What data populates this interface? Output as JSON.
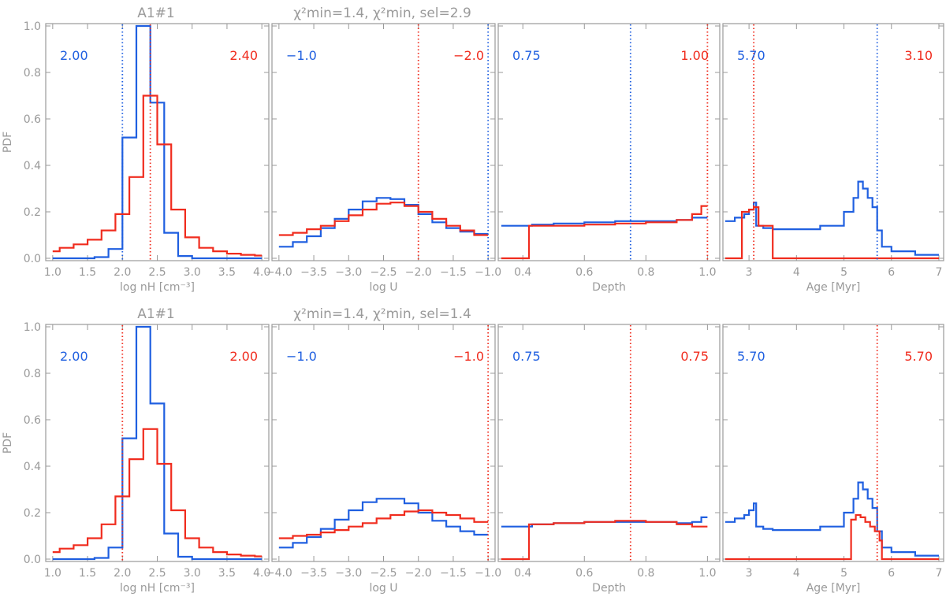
{
  "colors": {
    "blue": "#1f5fe0",
    "red": "#f02c1e",
    "axis": "#9a9a9a"
  },
  "rows": [
    {
      "titles": [
        {
          "text": "A1#1"
        },
        {
          "text": "χ²min=1.4, χ²min, sel=2.9"
        }
      ]
    },
    {
      "titles": [
        {
          "text": "A1#1"
        },
        {
          "text": "χ²min=1.4, χ²min, sel=1.4"
        }
      ]
    }
  ],
  "y_axis": {
    "label": "PDF",
    "ylim": [
      0,
      1.0
    ],
    "ticks": [
      "0.0",
      "0.2",
      "0.4",
      "0.6",
      "0.8",
      "1.0"
    ]
  },
  "chart_data": [
    {
      "type": "line",
      "row": 0,
      "col": 0,
      "xlabel": "log nH [cm⁻³]",
      "xlim": [
        0.9,
        4.1
      ],
      "xticks": [
        "1.0",
        "1.5",
        "2.0",
        "2.5",
        "3.0",
        "3.5",
        "4.0"
      ],
      "ylim": [
        0,
        1.0
      ],
      "annotations": {
        "blue": "2.00",
        "red": "2.40"
      },
      "vlines": [
        {
          "x": 2.0,
          "color": "blue"
        },
        {
          "x": 2.4,
          "color": "red"
        }
      ],
      "series": [
        {
          "color": "blue",
          "step_edges": [
            1.0,
            1.2,
            1.4,
            1.6,
            1.8,
            2.0,
            2.2,
            2.4,
            2.6,
            2.8,
            3.0,
            3.2,
            3.4,
            3.6,
            3.8,
            4.0
          ],
          "values": [
            0.0,
            0.0,
            0.0,
            0.005,
            0.04,
            0.52,
            1.0,
            0.67,
            0.11,
            0.01,
            0.0,
            0.0,
            0.0,
            0.0,
            0.0
          ]
        },
        {
          "color": "red",
          "step_edges": [
            1.0,
            1.1,
            1.3,
            1.5,
            1.7,
            1.9,
            2.1,
            2.3,
            2.5,
            2.7,
            2.9,
            3.1,
            3.3,
            3.5,
            3.7,
            3.9,
            4.0
          ],
          "values": [
            0.03,
            0.045,
            0.06,
            0.08,
            0.12,
            0.19,
            0.35,
            0.7,
            0.49,
            0.21,
            0.09,
            0.045,
            0.03,
            0.02,
            0.015,
            0.012
          ]
        }
      ]
    },
    {
      "type": "line",
      "row": 0,
      "col": 1,
      "xlabel": "log U",
      "xlim": [
        -4.1,
        -0.9
      ],
      "xticks": [
        "−4.0",
        "−3.5",
        "−3.0",
        "−2.5",
        "−2.0",
        "−1.5",
        "−1.0"
      ],
      "ylim": [
        0,
        1.0
      ],
      "annotations": {
        "blue": "−1.0",
        "red": "−2.0"
      },
      "vlines": [
        {
          "x": -1.0,
          "color": "blue"
        },
        {
          "x": -2.0,
          "color": "red"
        }
      ],
      "series": [
        {
          "color": "blue",
          "step_edges": [
            -4.0,
            -3.8,
            -3.6,
            -3.4,
            -3.2,
            -3.0,
            -2.8,
            -2.6,
            -2.4,
            -2.2,
            -2.0,
            -1.8,
            -1.6,
            -1.4,
            -1.2,
            -1.0
          ],
          "values": [
            0.05,
            0.07,
            0.095,
            0.13,
            0.17,
            0.21,
            0.245,
            0.26,
            0.255,
            0.23,
            0.19,
            0.155,
            0.13,
            0.115,
            0.105
          ]
        },
        {
          "color": "red",
          "step_edges": [
            -4.0,
            -3.8,
            -3.6,
            -3.4,
            -3.2,
            -3.0,
            -2.8,
            -2.6,
            -2.4,
            -2.2,
            -2.0,
            -1.8,
            -1.6,
            -1.4,
            -1.2,
            -1.0
          ],
          "values": [
            0.1,
            0.11,
            0.125,
            0.14,
            0.16,
            0.185,
            0.21,
            0.235,
            0.24,
            0.225,
            0.2,
            0.17,
            0.14,
            0.12,
            0.1
          ]
        }
      ]
    },
    {
      "type": "line",
      "row": 0,
      "col": 2,
      "xlabel": "Depth",
      "xlim": [
        0.32,
        1.04
      ],
      "xticks": [
        "0.4",
        "0.6",
        "0.8",
        "1.0"
      ],
      "ylim": [
        0,
        1.0
      ],
      "annotations": {
        "blue": "0.75",
        "red": "1.00"
      },
      "vlines": [
        {
          "x": 0.75,
          "color": "blue"
        },
        {
          "x": 1.0,
          "color": "red"
        }
      ],
      "series": [
        {
          "color": "blue",
          "step_edges": [
            0.33,
            0.43,
            0.5,
            0.6,
            0.7,
            0.8,
            0.9,
            0.95,
            1.0
          ],
          "values": [
            0.14,
            0.145,
            0.15,
            0.155,
            0.16,
            0.16,
            0.165,
            0.175
          ]
        },
        {
          "color": "red",
          "step_edges": [
            0.33,
            0.42,
            0.5,
            0.6,
            0.7,
            0.8,
            0.9,
            0.95,
            0.98,
            1.0
          ],
          "values": [
            0.0,
            0.14,
            0.14,
            0.145,
            0.15,
            0.155,
            0.165,
            0.19,
            0.225
          ]
        }
      ]
    },
    {
      "type": "line",
      "row": 0,
      "col": 3,
      "xlabel": "Age [Myr]",
      "xlim": [
        2.45,
        7.1
      ],
      "xticks": [
        "3",
        "4",
        "5",
        "6",
        "7"
      ],
      "ylim": [
        0,
        1.0
      ],
      "annotations": {
        "blue": "5.70",
        "red": "3.10"
      },
      "vlines": [
        {
          "x": 5.7,
          "color": "blue"
        },
        {
          "x": 3.1,
          "color": "red"
        }
      ],
      "series": [
        {
          "color": "blue",
          "step_edges": [
            2.5,
            2.7,
            2.9,
            3.0,
            3.1,
            3.15,
            3.3,
            3.5,
            4.0,
            4.5,
            5.0,
            5.2,
            5.3,
            5.4,
            5.5,
            5.6,
            5.7,
            5.8,
            6.0,
            6.5,
            7.0
          ],
          "values": [
            0.16,
            0.175,
            0.19,
            0.21,
            0.24,
            0.14,
            0.13,
            0.125,
            0.125,
            0.14,
            0.2,
            0.26,
            0.33,
            0.3,
            0.26,
            0.22,
            0.12,
            0.05,
            0.03,
            0.015
          ]
        },
        {
          "color": "red",
          "step_edges": [
            2.5,
            2.8,
            2.85,
            3.0,
            3.1,
            3.2,
            3.5,
            7.0
          ],
          "values": [
            0.0,
            0.0,
            0.2,
            0.21,
            0.22,
            0.14,
            0.0
          ]
        }
      ]
    },
    {
      "type": "line",
      "row": 1,
      "col": 0,
      "xlabel": "log nH [cm⁻³]",
      "xlim": [
        0.9,
        4.1
      ],
      "xticks": [
        "1.0",
        "1.5",
        "2.0",
        "2.5",
        "3.0",
        "3.5",
        "4.0"
      ],
      "ylim": [
        0,
        1.0
      ],
      "annotations": {
        "blue": "2.00",
        "red": "2.00"
      },
      "vlines": [
        {
          "x": 2.0,
          "color": "red"
        }
      ],
      "series": [
        {
          "color": "blue",
          "step_edges": [
            1.0,
            1.2,
            1.4,
            1.6,
            1.8,
            2.0,
            2.2,
            2.4,
            2.6,
            2.8,
            3.0,
            3.2,
            3.4,
            3.6,
            3.8,
            4.0
          ],
          "values": [
            0.0,
            0.0,
            0.0,
            0.005,
            0.05,
            0.52,
            1.0,
            0.67,
            0.11,
            0.01,
            0.0,
            0.0,
            0.0,
            0.0,
            0.0
          ]
        },
        {
          "color": "red",
          "step_edges": [
            1.0,
            1.1,
            1.3,
            1.5,
            1.7,
            1.9,
            2.1,
            2.3,
            2.5,
            2.7,
            2.9,
            3.1,
            3.3,
            3.5,
            3.7,
            3.9,
            4.0
          ],
          "values": [
            0.03,
            0.045,
            0.06,
            0.09,
            0.15,
            0.27,
            0.43,
            0.56,
            0.41,
            0.21,
            0.09,
            0.05,
            0.03,
            0.02,
            0.015,
            0.012
          ]
        }
      ]
    },
    {
      "type": "line",
      "row": 1,
      "col": 1,
      "xlabel": "log U",
      "xlim": [
        -4.1,
        -0.9
      ],
      "xticks": [
        "−4.0",
        "−3.5",
        "−3.0",
        "−2.5",
        "−2.0",
        "−1.5",
        "−1.0"
      ],
      "ylim": [
        0,
        1.0
      ],
      "annotations": {
        "blue": "−1.0",
        "red": "−1.0"
      },
      "vlines": [
        {
          "x": -1.0,
          "color": "red"
        }
      ],
      "series": [
        {
          "color": "blue",
          "step_edges": [
            -4.0,
            -3.8,
            -3.6,
            -3.4,
            -3.2,
            -3.0,
            -2.8,
            -2.6,
            -2.4,
            -2.2,
            -2.0,
            -1.8,
            -1.6,
            -1.4,
            -1.2,
            -1.0
          ],
          "values": [
            0.05,
            0.07,
            0.095,
            0.13,
            0.17,
            0.21,
            0.245,
            0.26,
            0.26,
            0.24,
            0.2,
            0.165,
            0.14,
            0.12,
            0.105
          ]
        },
        {
          "color": "red",
          "step_edges": [
            -4.0,
            -3.8,
            -3.6,
            -3.4,
            -3.2,
            -3.0,
            -2.8,
            -2.6,
            -2.4,
            -2.2,
            -2.0,
            -1.8,
            -1.6,
            -1.4,
            -1.2,
            -1.0
          ],
          "values": [
            0.09,
            0.1,
            0.105,
            0.115,
            0.125,
            0.14,
            0.155,
            0.175,
            0.19,
            0.205,
            0.21,
            0.2,
            0.19,
            0.175,
            0.16
          ]
        }
      ]
    },
    {
      "type": "line",
      "row": 1,
      "col": 2,
      "xlabel": "Depth",
      "xlim": [
        0.32,
        1.04
      ],
      "xticks": [
        "0.4",
        "0.6",
        "0.8",
        "1.0"
      ],
      "ylim": [
        0,
        1.0
      ],
      "annotations": {
        "blue": "0.75",
        "red": "0.75"
      },
      "vlines": [
        {
          "x": 0.75,
          "color": "red"
        }
      ],
      "series": [
        {
          "color": "blue",
          "step_edges": [
            0.33,
            0.43,
            0.5,
            0.6,
            0.7,
            0.8,
            0.9,
            0.95,
            0.98,
            1.0
          ],
          "values": [
            0.14,
            0.15,
            0.155,
            0.16,
            0.16,
            0.16,
            0.155,
            0.16,
            0.18
          ]
        },
        {
          "color": "red",
          "step_edges": [
            0.33,
            0.42,
            0.5,
            0.6,
            0.7,
            0.8,
            0.9,
            0.95,
            1.0
          ],
          "values": [
            0.0,
            0.15,
            0.155,
            0.16,
            0.165,
            0.16,
            0.15,
            0.14
          ]
        }
      ]
    },
    {
      "type": "line",
      "row": 1,
      "col": 3,
      "xlabel": "Age [Myr]",
      "xlim": [
        2.45,
        7.1
      ],
      "xticks": [
        "3",
        "4",
        "5",
        "6",
        "7"
      ],
      "ylim": [
        0,
        1.0
      ],
      "annotations": {
        "blue": "5.70",
        "red": "5.70"
      },
      "vlines": [
        {
          "x": 5.7,
          "color": "red"
        }
      ],
      "series": [
        {
          "color": "blue",
          "step_edges": [
            2.5,
            2.7,
            2.9,
            3.0,
            3.1,
            3.15,
            3.3,
            3.5,
            4.0,
            4.5,
            5.0,
            5.2,
            5.3,
            5.4,
            5.5,
            5.6,
            5.7,
            5.8,
            6.0,
            6.5,
            7.0
          ],
          "values": [
            0.16,
            0.175,
            0.19,
            0.21,
            0.24,
            0.14,
            0.13,
            0.125,
            0.125,
            0.14,
            0.2,
            0.26,
            0.33,
            0.3,
            0.26,
            0.22,
            0.12,
            0.05,
            0.03,
            0.015
          ]
        },
        {
          "color": "red",
          "step_edges": [
            2.5,
            5.15,
            5.25,
            5.35,
            5.45,
            5.55,
            5.65,
            5.75,
            5.8,
            7.0
          ],
          "values": [
            0.0,
            0.17,
            0.19,
            0.18,
            0.16,
            0.14,
            0.12,
            0.08,
            0.0
          ]
        }
      ]
    }
  ]
}
